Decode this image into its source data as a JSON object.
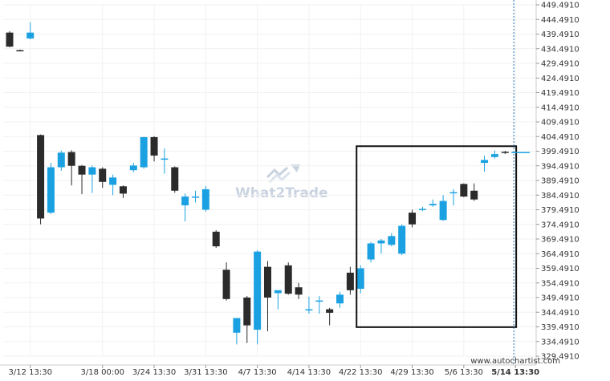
{
  "watermark": {
    "text": "What2Trade"
  },
  "credit": "www.autochartist.com",
  "colors": {
    "up": "#1ba1e2",
    "down": "#2b2b2b",
    "box": "#111111",
    "dashed": "#1a6db3",
    "current": "#1ba1e2"
  },
  "chart_data": {
    "type": "candlestick",
    "title": "",
    "xlabel": "",
    "ylabel": "",
    "ylim": [
      329.491,
      449.491
    ],
    "y_ticks": [
      "449.4910",
      "444.4910",
      "439.4910",
      "434.4910",
      "429.4910",
      "424.4910",
      "419.4910",
      "414.4910",
      "409.4910",
      "404.4910",
      "399.4910",
      "394.4910",
      "389.4910",
      "384.4910",
      "379.4910",
      "374.4910",
      "369.4910",
      "364.4910",
      "359.4910",
      "354.4910",
      "349.4910",
      "344.4910",
      "339.4910",
      "334.4910",
      "329.4910"
    ],
    "x_ticks": [
      {
        "label": "3/12 13:30",
        "index": 2
      },
      {
        "label": "3/18 00:00",
        "index": 9
      },
      {
        "label": "3/24 13:30",
        "index": 14
      },
      {
        "label": "3/31 13:30",
        "index": 19
      },
      {
        "label": "4/7 13:30",
        "index": 24
      },
      {
        "label": "4/14 13:30",
        "index": 29
      },
      {
        "label": "4/22 13:30",
        "index": 34
      },
      {
        "label": "4/29 13:30",
        "index": 39
      },
      {
        "label": "5/6 13:30",
        "index": 44
      },
      {
        "label": "5/14 13:30",
        "index": 49,
        "bold": true
      }
    ],
    "candles": [
      {
        "o": 440.0,
        "h": 440.5,
        "l": 435.0,
        "c": 435.2
      },
      {
        "o": 434.0,
        "h": 434.2,
        "l": 433.7,
        "c": 433.8
      },
      {
        "o": 438.0,
        "h": 443.5,
        "l": 437.7,
        "c": 440.0
      },
      {
        "o": 405.0,
        "h": 405.2,
        "l": 374.5,
        "c": 376.5
      },
      {
        "o": 378.5,
        "h": 395.5,
        "l": 378.0,
        "c": 394.0
      },
      {
        "o": 394.0,
        "h": 399.7,
        "l": 392.8,
        "c": 399.0
      },
      {
        "o": 399.2,
        "h": 399.8,
        "l": 387.8,
        "c": 394.5
      },
      {
        "o": 394.5,
        "h": 394.8,
        "l": 384.8,
        "c": 391.5
      },
      {
        "o": 391.5,
        "h": 394.6,
        "l": 385.2,
        "c": 394.0
      },
      {
        "o": 393.5,
        "h": 394.0,
        "l": 387.0,
        "c": 389.0
      },
      {
        "o": 388.0,
        "h": 391.5,
        "l": 384.5,
        "c": 390.5
      },
      {
        "o": 387.5,
        "h": 387.8,
        "l": 383.5,
        "c": 385.0
      },
      {
        "o": 393.0,
        "h": 395.5,
        "l": 392.3,
        "c": 394.6
      },
      {
        "o": 394.0,
        "h": 404.4,
        "l": 393.5,
        "c": 404.3
      },
      {
        "o": 404.3,
        "h": 404.6,
        "l": 396.0,
        "c": 398.0
      },
      {
        "o": 397.0,
        "h": 400.4,
        "l": 391.8,
        "c": 397.0
      },
      {
        "o": 394.0,
        "h": 394.3,
        "l": 385.3,
        "c": 386.0
      },
      {
        "o": 381.0,
        "h": 385.0,
        "l": 375.5,
        "c": 384.0
      },
      {
        "o": 384.0,
        "h": 386.0,
        "l": 382.0,
        "c": 384.0
      },
      {
        "o": 379.5,
        "h": 387.6,
        "l": 378.8,
        "c": 386.5
      },
      {
        "o": 372.0,
        "h": 372.5,
        "l": 366.5,
        "c": 367.0
      },
      {
        "o": 359.0,
        "h": 361.5,
        "l": 348.5,
        "c": 349.0
      },
      {
        "o": 337.5,
        "h": 342.5,
        "l": 333.5,
        "c": 342.5
      },
      {
        "o": 349.5,
        "h": 350.0,
        "l": 334.0,
        "c": 340.0
      },
      {
        "o": 338.5,
        "h": 365.7,
        "l": 333.5,
        "c": 365.2
      },
      {
        "o": 360.0,
        "h": 362.0,
        "l": 338.0,
        "c": 349.5
      },
      {
        "o": 351.0,
        "h": 352.0,
        "l": 345.5,
        "c": 352.0
      },
      {
        "o": 360.5,
        "h": 361.5,
        "l": 350.5,
        "c": 350.8
      },
      {
        "o": 353.0,
        "h": 354.5,
        "l": 349.0,
        "c": 350.5
      },
      {
        "o": 345.5,
        "h": 349.8,
        "l": 344.0,
        "c": 345.5
      },
      {
        "o": 348.5,
        "h": 350.0,
        "l": 344.0,
        "c": 348.5
      },
      {
        "o": 345.5,
        "h": 346.0,
        "l": 340.0,
        "c": 344.3
      },
      {
        "o": 347.5,
        "h": 351.5,
        "l": 346.0,
        "c": 350.5
      },
      {
        "o": 358.0,
        "h": 360.0,
        "l": 350.5,
        "c": 352.0
      },
      {
        "o": 352.5,
        "h": 360.5,
        "l": 351.0,
        "c": 359.5
      },
      {
        "o": 362.5,
        "h": 368.5,
        "l": 361.5,
        "c": 368.0
      },
      {
        "o": 368.0,
        "h": 369.5,
        "l": 364.5,
        "c": 369.0
      },
      {
        "o": 367.5,
        "h": 371.5,
        "l": 367.0,
        "c": 370.5
      },
      {
        "o": 364.5,
        "h": 374.5,
        "l": 364.0,
        "c": 374.0
      },
      {
        "o": 378.5,
        "h": 379.5,
        "l": 373.5,
        "c": 374.5
      },
      {
        "o": 379.5,
        "h": 380.5,
        "l": 379.0,
        "c": 379.8
      },
      {
        "o": 381.0,
        "h": 383.0,
        "l": 380.5,
        "c": 381.5
      },
      {
        "o": 376.0,
        "h": 384.5,
        "l": 375.7,
        "c": 382.5
      },
      {
        "o": 385.5,
        "h": 386.5,
        "l": 381.0,
        "c": 385.5
      },
      {
        "o": 388.3,
        "h": 388.5,
        "l": 383.8,
        "c": 384.0
      },
      {
        "o": 386.0,
        "h": 388.5,
        "l": 382.5,
        "c": 383.0
      },
      {
        "o": 395.5,
        "h": 398.0,
        "l": 392.5,
        "c": 396.5
      },
      {
        "o": 397.5,
        "h": 399.7,
        "l": 397.0,
        "c": 398.5
      },
      {
        "o": 399.3,
        "h": 399.6,
        "l": 398.5,
        "c": 399.0
      }
    ],
    "pattern_box": {
      "from_index": 34,
      "to_index": 49,
      "y_top": 401.2,
      "y_bottom": 339.4
    },
    "dashed_line_index": 49,
    "current_price": 399.0
  }
}
